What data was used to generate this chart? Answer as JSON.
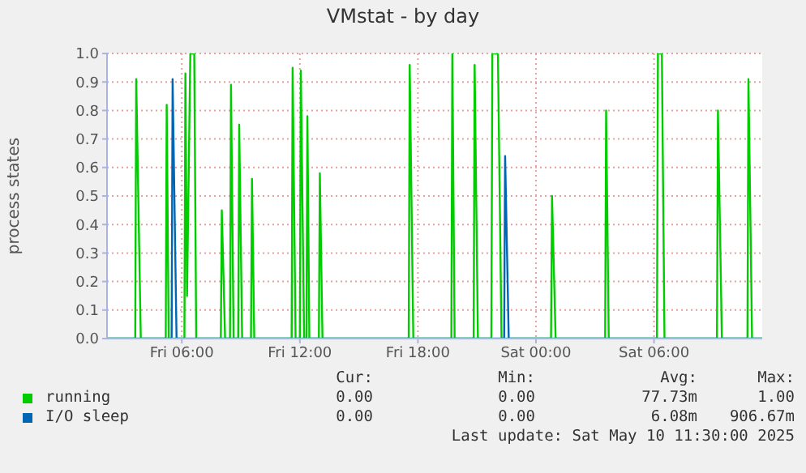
{
  "chart_data": {
    "type": "line",
    "title": "VMstat - by day",
    "ylabel": "process states",
    "xlim": [
      "2025-05-09T02:12",
      "2025-05-10T11:30"
    ],
    "xticks": [
      {
        "value": "2025-05-09T06:00",
        "label": "Fri 06:00"
      },
      {
        "value": "2025-05-09T12:00",
        "label": "Fri 12:00"
      },
      {
        "value": "2025-05-09T18:00",
        "label": "Fri 18:00"
      },
      {
        "value": "2025-05-10T00:00",
        "label": "Sat 00:00"
      },
      {
        "value": "2025-05-10T06:00",
        "label": "Sat 06:00"
      }
    ],
    "ylim": [
      0,
      1.0
    ],
    "yticks": [
      {
        "value": 0,
        "label": "0.0"
      },
      {
        "value": 0.1,
        "label": "0.1"
      },
      {
        "value": 0.2,
        "label": "0.2"
      },
      {
        "value": 0.3,
        "label": "0.3"
      },
      {
        "value": 0.4,
        "label": "0.4"
      },
      {
        "value": 0.5,
        "label": "0.5"
      },
      {
        "value": 0.6,
        "label": "0.6"
      },
      {
        "value": 0.7,
        "label": "0.7"
      },
      {
        "value": 0.8,
        "label": "0.8"
      },
      {
        "value": 0.9,
        "label": "0.9"
      },
      {
        "value": 1.0,
        "label": "1.0"
      }
    ],
    "grid": true,
    "legend": "bottom",
    "marker": "none",
    "line_style": "solid",
    "series": [
      {
        "name": "running",
        "color": "#00cc00",
        "x": [
          "2025-05-09T02:12",
          "2025-05-09T03:38",
          "2025-05-09T03:41",
          "2025-05-09T03:55",
          "2025-05-09T05:11",
          "2025-05-09T05:14",
          "2025-05-09T05:20",
          "2025-05-09T06:08",
          "2025-05-09T06:11",
          "2025-05-09T06:16",
          "2025-05-09T06:26",
          "2025-05-09T06:38",
          "2025-05-09T06:44",
          "2025-05-09T07:59",
          "2025-05-09T08:02",
          "2025-05-09T08:12",
          "2025-05-09T08:27",
          "2025-05-09T08:30",
          "2025-05-09T08:38",
          "2025-05-09T08:52",
          "2025-05-09T08:55",
          "2025-05-09T09:04",
          "2025-05-09T09:31",
          "2025-05-09T09:34",
          "2025-05-09T09:41",
          "2025-05-09T11:35",
          "2025-05-09T11:38",
          "2025-05-09T11:47",
          "2025-05-09T12:00",
          "2025-05-09T12:03",
          "2025-05-09T12:13",
          "2025-05-09T12:20",
          "2025-05-09T12:23",
          "2025-05-09T12:29",
          "2025-05-09T12:58",
          "2025-05-09T13:01",
          "2025-05-09T13:09",
          "2025-05-09T17:32",
          "2025-05-09T17:35",
          "2025-05-09T17:46",
          "2025-05-09T19:42",
          "2025-05-09T19:45",
          "2025-05-09T19:52",
          "2025-05-09T20:50",
          "2025-05-09T20:53",
          "2025-05-09T21:03",
          "2025-05-09T21:44",
          "2025-05-09T21:47",
          "2025-05-09T22:04",
          "2025-05-09T22:15",
          "2025-05-10T00:46",
          "2025-05-10T00:49",
          "2025-05-10T01:00",
          "2025-05-10T03:31",
          "2025-05-10T03:34",
          "2025-05-10T03:42",
          "2025-05-10T06:09",
          "2025-05-10T06:12",
          "2025-05-10T06:24",
          "2025-05-10T06:32",
          "2025-05-10T09:12",
          "2025-05-10T09:15",
          "2025-05-10T09:27",
          "2025-05-10T10:45",
          "2025-05-10T10:48",
          "2025-05-10T10:59",
          "2025-05-10T11:30"
        ],
        "values": [
          0,
          0,
          0.91,
          0,
          0,
          0.82,
          0,
          0,
          0.93,
          0.15,
          1.0,
          1.0,
          0,
          0,
          0.45,
          0,
          0,
          0.89,
          0,
          0,
          0.75,
          0,
          0,
          0.56,
          0,
          0,
          0.95,
          0,
          0,
          0.94,
          0,
          0,
          0.78,
          0,
          0,
          0.58,
          0,
          0,
          0.96,
          0,
          0,
          1.0,
          0,
          0,
          0.96,
          0,
          0,
          1.0,
          1.0,
          0,
          0,
          0.5,
          0,
          0,
          0.8,
          0,
          0,
          1.0,
          1.0,
          0,
          0,
          0.8,
          0,
          0,
          0.91,
          0,
          0
        ]
      },
      {
        "name": "I/O sleep",
        "color": "#0066b3",
        "x": [
          "2025-05-09T02:12",
          "2025-05-09T05:29",
          "2025-05-09T05:32",
          "2025-05-09T05:44",
          "2025-05-09T22:23",
          "2025-05-09T22:26",
          "2025-05-09T22:37",
          "2025-05-10T11:30"
        ],
        "values": [
          0,
          0,
          0.91,
          0,
          0,
          0.64,
          0,
          0
        ]
      }
    ],
    "annotations": [
      "Cur:",
      "Min:",
      "Avg:",
      "Max:",
      "0.00",
      "0.00",
      "77.73m",
      "1.00",
      "0.00",
      "0.00",
      "6.08m",
      "906.67m",
      "Last update: Sat May 10 11:30:00 2025"
    ]
  }
}
